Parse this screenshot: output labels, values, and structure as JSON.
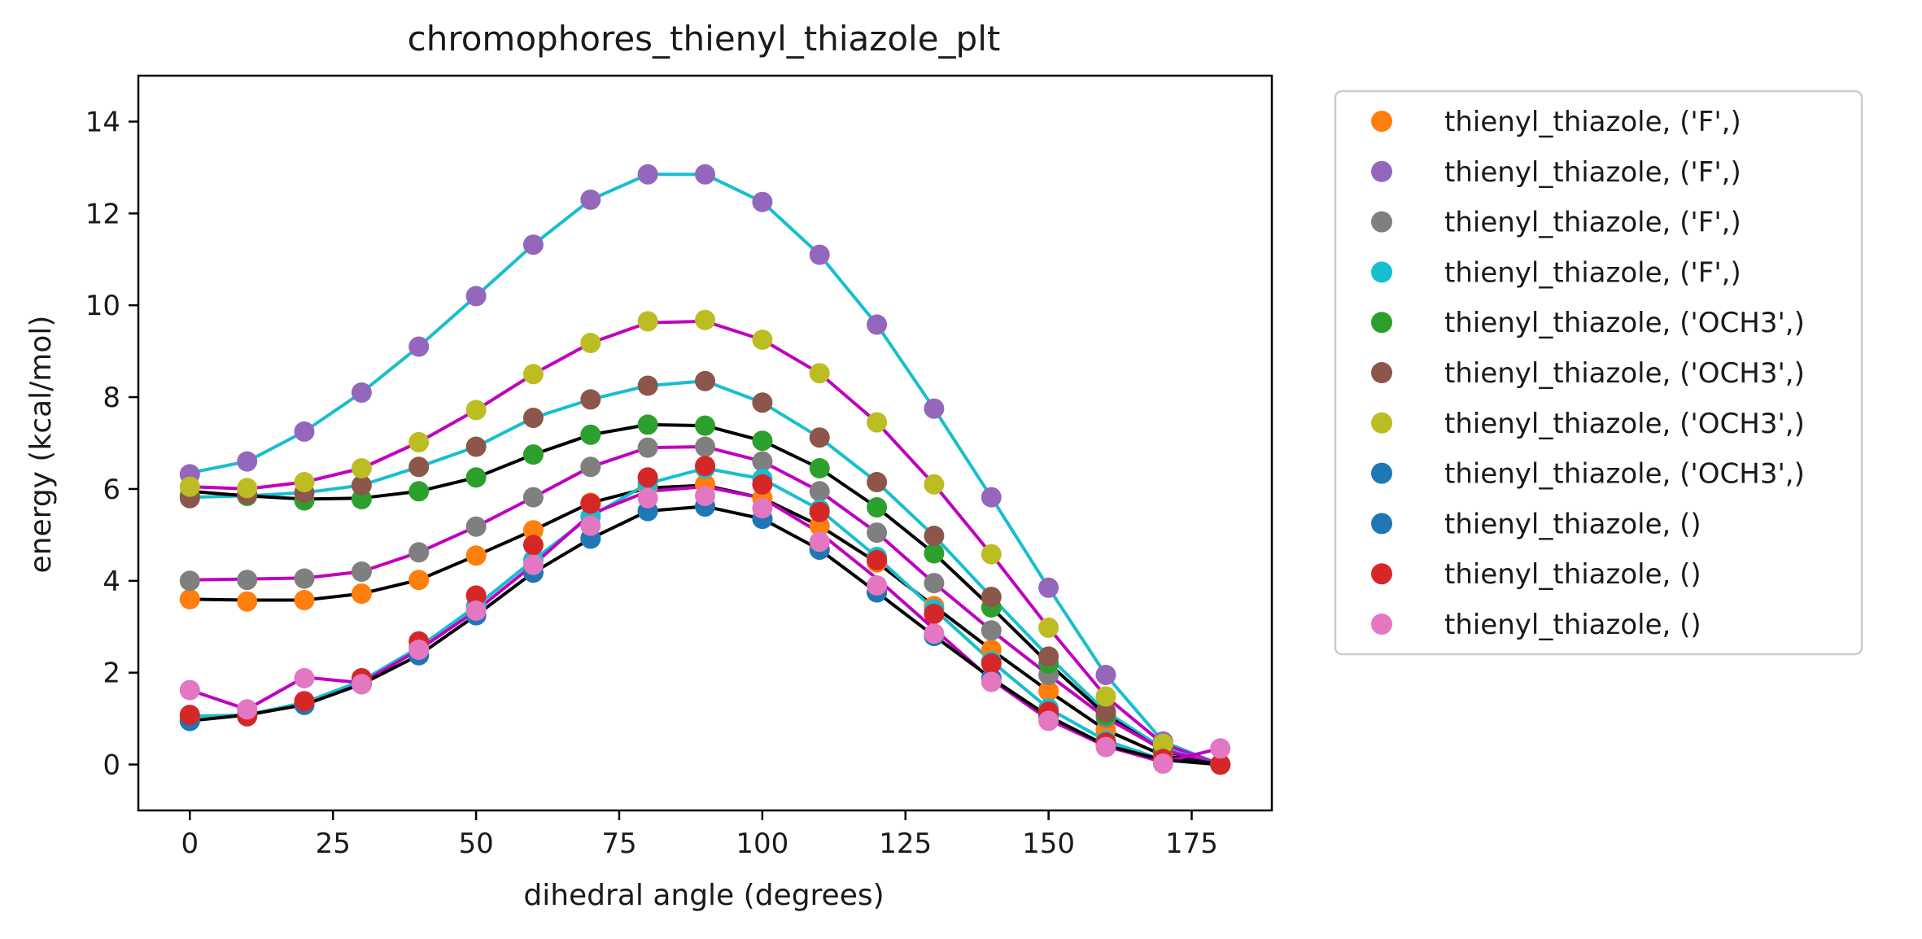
{
  "chart_data": {
    "type": "scatter",
    "title": "chromophores_thienyl_thiazole_plt",
    "xlabel": "dihedral angle (degrees)",
    "ylabel": "energy (kcal/mol)",
    "xlim": [
      -9,
      189
    ],
    "ylim": [
      -1,
      15
    ],
    "xticks": [
      0,
      25,
      50,
      75,
      100,
      125,
      150,
      175
    ],
    "yticks": [
      0,
      2,
      4,
      6,
      8,
      10,
      12,
      14
    ],
    "grid": false,
    "legend_position": "outside-right",
    "x": [
      0,
      10,
      20,
      30,
      40,
      50,
      60,
      70,
      80,
      90,
      100,
      110,
      120,
      130,
      140,
      150,
      160,
      170,
      180
    ],
    "series": [
      {
        "name": "thienyl_thiazole, ('F',)",
        "color": "#ff7f0e",
        "values": [
          3.6,
          3.55,
          3.58,
          3.72,
          4.02,
          4.55,
          5.1,
          5.7,
          6.05,
          6.1,
          5.8,
          5.2,
          4.4,
          3.45,
          2.5,
          1.6,
          0.75,
          0.2,
          0.0
        ]
      },
      {
        "name": "thienyl_thiazole, ('F',)",
        "color": "#9467bd",
        "values": [
          6.32,
          6.6,
          7.25,
          8.1,
          9.1,
          10.2,
          11.32,
          12.3,
          12.85,
          12.85,
          12.25,
          11.1,
          9.58,
          7.75,
          5.82,
          3.85,
          1.95,
          0.5,
          0.0
        ]
      },
      {
        "name": "thienyl_thiazole, ('F',)",
        "color": "#7f7f7f",
        "values": [
          4.0,
          4.02,
          4.05,
          4.2,
          4.62,
          5.18,
          5.82,
          6.48,
          6.9,
          6.92,
          6.6,
          5.95,
          5.05,
          3.95,
          2.92,
          1.95,
          1.02,
          0.32,
          0.0
        ]
      },
      {
        "name": "thienyl_thiazole, ('F',)",
        "color": "#17becf",
        "values": [
          1.05,
          1.08,
          1.35,
          1.82,
          2.55,
          3.45,
          4.45,
          5.4,
          6.12,
          6.45,
          6.22,
          5.55,
          4.52,
          3.38,
          2.25,
          1.22,
          0.52,
          0.1,
          0.0
        ]
      },
      {
        "name": "thienyl_thiazole, ('OCH3',)",
        "color": "#2ca02c",
        "values": [
          5.85,
          5.85,
          5.75,
          5.78,
          5.95,
          6.25,
          6.75,
          7.18,
          7.4,
          7.38,
          7.05,
          6.45,
          5.6,
          4.6,
          3.42,
          2.2,
          1.08,
          0.3,
          0.0
        ]
      },
      {
        "name": "thienyl_thiazole, ('OCH3',)",
        "color": "#8c564b",
        "values": [
          5.8,
          5.88,
          5.92,
          6.08,
          6.48,
          6.92,
          7.55,
          7.95,
          8.25,
          8.35,
          7.88,
          7.12,
          6.15,
          4.98,
          3.65,
          2.35,
          1.15,
          0.35,
          0.0
        ]
      },
      {
        "name": "thienyl_thiazole, ('OCH3',)",
        "color": "#bcbd22",
        "values": [
          6.05,
          6.02,
          6.15,
          6.45,
          7.02,
          7.72,
          8.5,
          9.18,
          9.65,
          9.68,
          9.25,
          8.52,
          7.45,
          6.1,
          4.58,
          2.98,
          1.48,
          0.45,
          0.0
        ]
      },
      {
        "name": "thienyl_thiazole, ('OCH3',)",
        "color": "#1f77b4",
        "values": [
          0.95,
          1.08,
          1.3,
          1.75,
          2.38,
          3.25,
          4.18,
          4.92,
          5.52,
          5.62,
          5.35,
          4.68,
          3.75,
          2.8,
          1.88,
          1.05,
          0.42,
          0.1,
          0.0
        ]
      },
      {
        "name": "thienyl_thiazole, ()",
        "color": "#1f77b4",
        "values": [
          0.95,
          1.08,
          1.3,
          1.75,
          2.38,
          3.25,
          4.18,
          4.92,
          5.52,
          5.62,
          5.35,
          4.68,
          3.75,
          2.8,
          1.88,
          1.05,
          0.42,
          0.1,
          0.0
        ]
      },
      {
        "name": "thienyl_thiazole, ()",
        "color": "#d62728",
        "values": [
          1.08,
          1.05,
          1.38,
          1.88,
          2.68,
          3.68,
          4.78,
          5.68,
          6.25,
          6.5,
          6.1,
          5.5,
          4.45,
          3.28,
          2.2,
          1.15,
          0.48,
          0.12,
          0.0
        ]
      },
      {
        "name": "thienyl_thiazole, ()",
        "color": "#e377c2",
        "values": [
          1.62,
          1.2,
          1.88,
          1.75,
          2.5,
          3.35,
          4.35,
          5.2,
          5.8,
          5.85,
          5.58,
          4.85,
          3.9,
          2.85,
          1.8,
          0.95,
          0.38,
          0.02,
          0.35
        ]
      }
    ],
    "fit_lines": [
      {
        "color": "#17becf",
        "values": [
          6.35,
          6.6,
          7.25,
          8.1,
          9.1,
          10.2,
          11.32,
          12.3,
          12.85,
          12.85,
          12.25,
          11.1,
          9.58,
          7.75,
          5.82,
          3.85,
          1.95,
          0.5,
          0.0
        ]
      },
      {
        "color": "#c000c0",
        "values": [
          6.05,
          6.0,
          6.15,
          6.45,
          7.02,
          7.72,
          8.5,
          9.18,
          9.62,
          9.65,
          9.25,
          8.52,
          7.45,
          6.1,
          4.58,
          2.98,
          1.48,
          0.45,
          0.0
        ]
      },
      {
        "color": "#17becf",
        "values": [
          5.82,
          5.85,
          5.92,
          6.08,
          6.48,
          6.92,
          7.55,
          7.95,
          8.25,
          8.35,
          7.88,
          7.12,
          6.15,
          4.98,
          3.65,
          2.35,
          1.15,
          0.35,
          0.0
        ]
      },
      {
        "color": "#000000",
        "values": [
          5.95,
          5.85,
          5.78,
          5.8,
          5.95,
          6.25,
          6.75,
          7.18,
          7.4,
          7.38,
          7.05,
          6.45,
          5.6,
          4.6,
          3.42,
          2.2,
          1.08,
          0.3,
          0.0
        ]
      },
      {
        "color": "#c000c0",
        "values": [
          4.02,
          4.04,
          4.06,
          4.2,
          4.62,
          5.18,
          5.82,
          6.48,
          6.9,
          6.92,
          6.6,
          5.95,
          5.05,
          3.95,
          2.92,
          1.95,
          1.02,
          0.32,
          0.0
        ]
      },
      {
        "color": "#000000",
        "values": [
          3.6,
          3.58,
          3.58,
          3.72,
          4.02,
          4.55,
          5.1,
          5.7,
          6.02,
          6.08,
          5.8,
          5.2,
          4.4,
          3.45,
          2.5,
          1.6,
          0.75,
          0.2,
          0.0
        ]
      },
      {
        "color": "#17becf",
        "values": [
          1.05,
          1.08,
          1.35,
          1.82,
          2.55,
          3.45,
          4.45,
          5.4,
          6.12,
          6.45,
          6.22,
          5.55,
          4.52,
          3.38,
          2.25,
          1.22,
          0.52,
          0.1,
          0.0
        ]
      },
      {
        "color": "#c000c0",
        "values": [
          1.62,
          1.2,
          1.9,
          1.78,
          2.5,
          3.35,
          4.35,
          5.45,
          5.95,
          6.05,
          5.8,
          5.05,
          4.05,
          2.95,
          1.85,
          0.98,
          0.4,
          0.05,
          0.35
        ]
      },
      {
        "color": "#000000",
        "values": [
          0.95,
          1.08,
          1.3,
          1.75,
          2.38,
          3.25,
          4.18,
          4.92,
          5.52,
          5.62,
          5.35,
          4.68,
          3.75,
          2.8,
          1.88,
          1.05,
          0.42,
          0.1,
          0.0
        ]
      }
    ]
  }
}
